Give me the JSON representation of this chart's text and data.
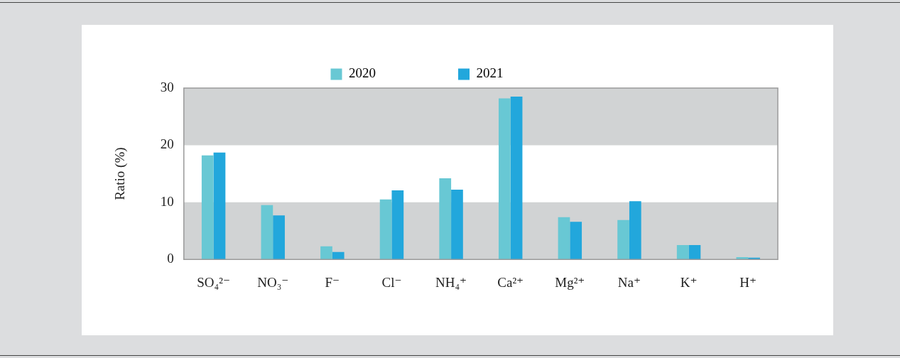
{
  "chart_data": {
    "type": "bar",
    "ylabel": "Ratio (%)",
    "categories": [
      "SO₄²⁻",
      "NO₃⁻",
      "F⁻",
      "Cl⁻",
      "NH₄⁺",
      "Ca²⁺",
      "Mg²⁺",
      "Na⁺",
      "K⁺",
      "H⁺"
    ],
    "series": [
      {
        "name": "2020",
        "color": "#68c8d4",
        "values": [
          18.2,
          9.5,
          2.3,
          10.5,
          14.2,
          28.2,
          7.4,
          6.9,
          2.5,
          0.4
        ]
      },
      {
        "name": "2021",
        "color": "#22a7dc",
        "values": [
          18.7,
          7.7,
          1.3,
          12.1,
          12.2,
          28.5,
          6.6,
          10.2,
          2.5,
          0.3
        ]
      }
    ],
    "ylim": [
      0,
      30
    ],
    "yticks": [
      0,
      10,
      20,
      30
    ],
    "bands": [
      {
        "axis": "y",
        "from": 0,
        "to": 10,
        "color": "#d1d3d4"
      },
      {
        "axis": "y",
        "from": 20,
        "to": 30,
        "color": "#d1d3d4"
      }
    ],
    "grid": false,
    "legend": "top"
  }
}
